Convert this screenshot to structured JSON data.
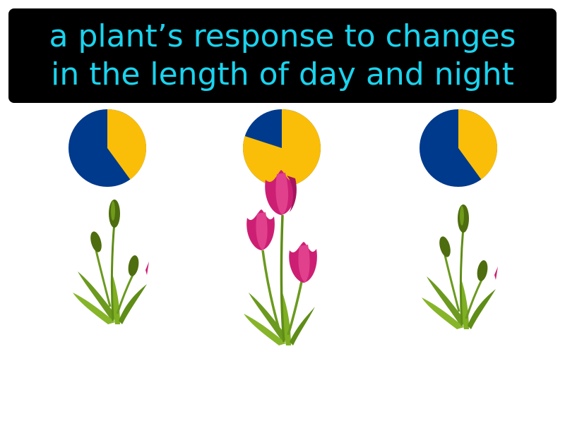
{
  "definition": {
    "line1": "a plant’s response to changes",
    "line2": "in the length of day and night"
  },
  "colors": {
    "banner_bg": "#000000",
    "text": "#1ad3ee",
    "night": "#003a8c",
    "day": "#fbbe08",
    "stem": "#5f8d17",
    "bud": "#4e6d0f",
    "petal": "#cc1f74"
  },
  "panels": [
    {
      "day_fraction": 0.4,
      "plant": "budding-plant",
      "flowering": false
    },
    {
      "day_fraction": 0.8,
      "plant": "flowering-tulips",
      "flowering": true
    },
    {
      "day_fraction": 0.4,
      "plant": "budding-plant",
      "flowering": false
    }
  ]
}
